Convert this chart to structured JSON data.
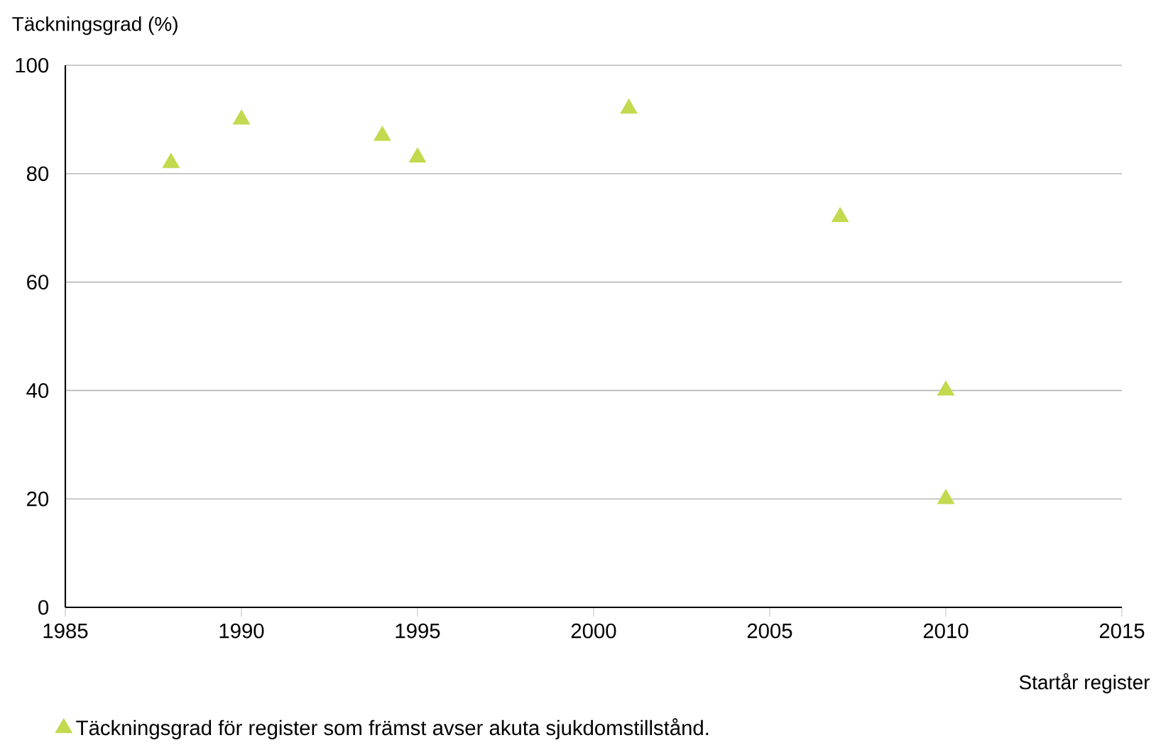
{
  "chart_data": {
    "type": "scatter",
    "xlabel": "Startår register",
    "ylabel": "Täckningsgrad (%)",
    "x": [
      1988,
      1990,
      1994,
      1995,
      2001,
      2007,
      2010,
      2010
    ],
    "series": [
      {
        "name": "Täckningsgrad för register som främst avser akuta sjukdomstillstånd.",
        "color": "#c3d94e",
        "values": [
          82,
          90,
          87,
          83,
          92,
          72,
          40,
          20
        ]
      }
    ],
    "xlim": [
      1985,
      2015
    ],
    "ylim": [
      0,
      100
    ],
    "xticks": [
      1985,
      1990,
      1995,
      2000,
      2005,
      2010,
      2015
    ],
    "yticks": [
      0,
      20,
      40,
      60,
      80,
      100
    ],
    "grid": "y",
    "legend": "bottom left",
    "marker": "triangle"
  }
}
